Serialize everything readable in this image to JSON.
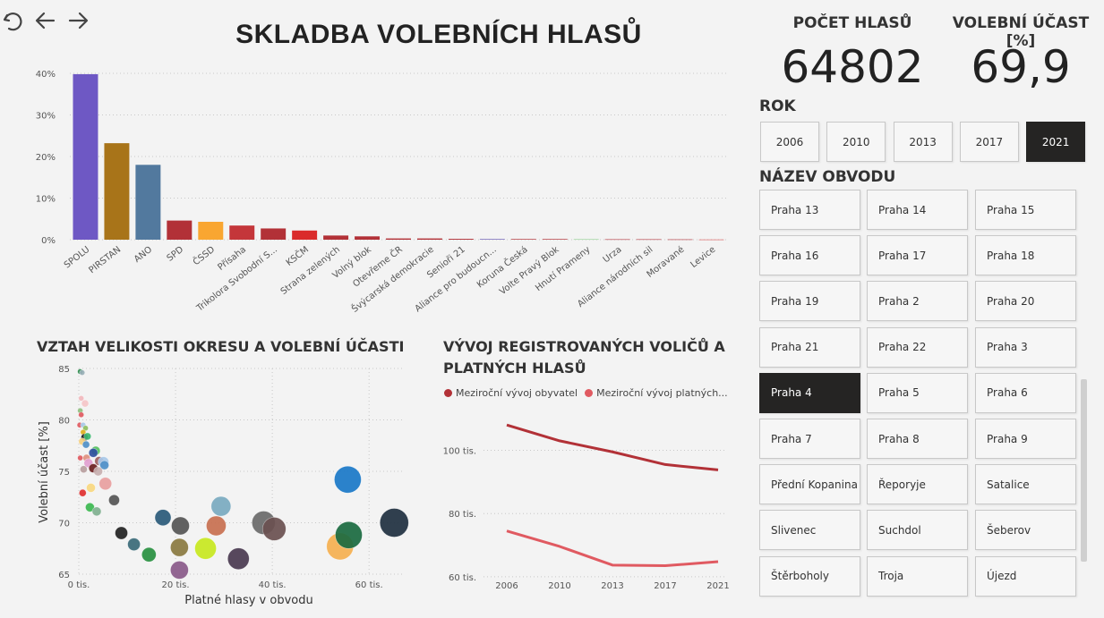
{
  "nav": {
    "undo_icon": "undo-icon",
    "back_icon": "arrow-left-icon",
    "forward_icon": "arrow-right-icon"
  },
  "title": "SKLADBA VOLEBNÍCH HLASŮ",
  "kpis": [
    {
      "label": "POČET HLASŮ",
      "value": "64802"
    },
    {
      "label": "VOLEBNÍ ÚČAST [%]",
      "value": "69,9"
    }
  ],
  "year_slicer": {
    "label": "ROK",
    "items": [
      "2006",
      "2010",
      "2013",
      "2017",
      "2021"
    ],
    "selected": "2021"
  },
  "district_slicer": {
    "label": "NÁZEV OBVODU",
    "items": [
      "Praha 13",
      "Praha 14",
      "Praha 15",
      "Praha 16",
      "Praha 17",
      "Praha 18",
      "Praha 19",
      "Praha 2",
      "Praha 20",
      "Praha 21",
      "Praha 22",
      "Praha 3",
      "Praha 4",
      "Praha 5",
      "Praha 6",
      "Praha 7",
      "Praha 8",
      "Praha 9",
      "Přední Kopanina",
      "Řeporyje",
      "Satalice",
      "Slivenec",
      "Suchdol",
      "Šeberov",
      "Štěrboholy",
      "Troja",
      "Újezd"
    ],
    "selected": "Praha 4"
  },
  "chart_data": [
    {
      "type": "bar",
      "title": "",
      "categories": [
        "SPOLU",
        "PIRSTAN",
        "ANO",
        "SPD",
        "ČSSD",
        "Přísaha",
        "Trikolora Svobodní S...",
        "KSČM",
        "Strana zelených",
        "Volný blok",
        "Otevřeme ČR",
        "Švýcarská demokracie",
        "Senioři 21",
        "Aliance pro budoucn...",
        "Koruna Česká",
        "Volte Pravý Blok",
        "Hnutí Prameny",
        "Urza",
        "Aliance národních sil",
        "Moravané",
        "Levice"
      ],
      "values": [
        39.8,
        23.2,
        18.0,
        4.6,
        4.3,
        3.4,
        2.7,
        2.2,
        1.0,
        0.8,
        0.3,
        0.3,
        0.2,
        0.2,
        0.15,
        0.15,
        0.12,
        0.1,
        0.1,
        0.08,
        0.05
      ],
      "colors": [
        "#6e58c4",
        "#a87419",
        "#52799e",
        "#b23137",
        "#f9a631",
        "#c4363a",
        "#b23137",
        "#da2b2b",
        "#b23137",
        "#b23137",
        "#b23137",
        "#b23137",
        "#b23137",
        "#8e82c4",
        "#b23137",
        "#b23137",
        "#8fcf8f",
        "#b23137",
        "#b23137",
        "#b23137",
        "#da5454"
      ],
      "yticks": [
        "0%",
        "10%",
        "20%",
        "30%",
        "40%"
      ],
      "ylim": [
        0,
        40
      ]
    },
    {
      "type": "scatter",
      "title": "VZTAH VELIKOSTI OKRESU A VOLEBNÍ ÚČASTI",
      "xlabel": "Platné hlasy v obvodu",
      "ylabel": "Volební účast [%]",
      "xlim": [
        0,
        67
      ],
      "ylim": [
        65,
        85
      ],
      "xticks": [
        {
          "v": 0,
          "label": "0 tis."
        },
        {
          "v": 20,
          "label": "20 tis."
        },
        {
          "v": 40,
          "label": "40 tis."
        },
        {
          "v": 60,
          "label": "60 tis."
        }
      ],
      "yticks": [
        {
          "v": 65,
          "label": "65"
        },
        {
          "v": 70,
          "label": "70"
        },
        {
          "v": 75,
          "label": "75"
        },
        {
          "v": 80,
          "label": "80"
        },
        {
          "v": 85,
          "label": "85"
        }
      ],
      "points": [
        {
          "x": 0.3,
          "y": 84.7,
          "r": 3,
          "c": "#2a8a4a"
        },
        {
          "x": 0.7,
          "y": 84.6,
          "r": 3,
          "c": "#9ab0b8"
        },
        {
          "x": 0.5,
          "y": 82.1,
          "r": 3,
          "c": "#f2b9bd"
        },
        {
          "x": 1.3,
          "y": 81.6,
          "r": 4,
          "c": "#f5c6c8"
        },
        {
          "x": 0.3,
          "y": 80.9,
          "r": 3,
          "c": "#8fbf7f"
        },
        {
          "x": 0.5,
          "y": 80.5,
          "r": 3,
          "c": "#e05a61"
        },
        {
          "x": 0.2,
          "y": 79.5,
          "r": 3,
          "c": "#e05a61"
        },
        {
          "x": 0.9,
          "y": 79.5,
          "r": 3,
          "c": "#a8c8e8"
        },
        {
          "x": 1.4,
          "y": 79.2,
          "r": 3,
          "c": "#8fbf5f"
        },
        {
          "x": 0.9,
          "y": 78.8,
          "r": 3,
          "c": "#e0b020"
        },
        {
          "x": 1.2,
          "y": 78.3,
          "r": 4,
          "c": "#1a1a1a"
        },
        {
          "x": 1.8,
          "y": 78.4,
          "r": 4,
          "c": "#3cb870"
        },
        {
          "x": 0.7,
          "y": 77.9,
          "r": 4,
          "c": "#f5d080"
        },
        {
          "x": 1.5,
          "y": 77.6,
          "r": 4,
          "c": "#5090c8"
        },
        {
          "x": 3.5,
          "y": 77.0,
          "r": 5,
          "c": "#55c060"
        },
        {
          "x": 3.0,
          "y": 76.8,
          "r": 5,
          "c": "#3050a0"
        },
        {
          "x": 0.3,
          "y": 76.3,
          "r": 3,
          "c": "#e05a61"
        },
        {
          "x": 1.6,
          "y": 76.3,
          "r": 4,
          "c": "#e09080"
        },
        {
          "x": 2.0,
          "y": 75.8,
          "r": 5,
          "c": "#e2a0d0"
        },
        {
          "x": 4.2,
          "y": 76.0,
          "r": 5,
          "c": "#a06060"
        },
        {
          "x": 5.1,
          "y": 75.9,
          "r": 6,
          "c": "#a8c8e8"
        },
        {
          "x": 5.3,
          "y": 75.6,
          "r": 5,
          "c": "#5090c8"
        },
        {
          "x": 3.0,
          "y": 75.3,
          "r": 5,
          "c": "#6a2020"
        },
        {
          "x": 4.0,
          "y": 75.0,
          "r": 5,
          "c": "#c8b0b0"
        },
        {
          "x": 1.0,
          "y": 75.2,
          "r": 4,
          "c": "#b8a0a0"
        },
        {
          "x": 5.5,
          "y": 73.8,
          "r": 7,
          "c": "#e8a0a0"
        },
        {
          "x": 2.5,
          "y": 73.4,
          "r": 5,
          "c": "#f8d880"
        },
        {
          "x": 0.8,
          "y": 72.9,
          "r": 4,
          "c": "#e03030"
        },
        {
          "x": 7.3,
          "y": 72.2,
          "r": 6,
          "c": "#555555"
        },
        {
          "x": 2.3,
          "y": 71.5,
          "r": 5,
          "c": "#3cb850"
        },
        {
          "x": 3.7,
          "y": 71.1,
          "r": 5,
          "c": "#80b090"
        },
        {
          "x": 8.8,
          "y": 69.0,
          "r": 7,
          "c": "#222222"
        },
        {
          "x": 11.4,
          "y": 67.9,
          "r": 7,
          "c": "#3a6a78"
        },
        {
          "x": 14.5,
          "y": 66.9,
          "r": 8,
          "c": "#289040"
        },
        {
          "x": 17.4,
          "y": 70.5,
          "r": 9,
          "c": "#2a5a7a"
        },
        {
          "x": 21.0,
          "y": 69.7,
          "r": 10,
          "c": "#555555"
        },
        {
          "x": 20.8,
          "y": 67.6,
          "r": 10,
          "c": "#8a7a40"
        },
        {
          "x": 20.8,
          "y": 65.4,
          "r": 10,
          "c": "#8a5a8a"
        },
        {
          "x": 26.2,
          "y": 67.5,
          "r": 12,
          "c": "#c8e820"
        },
        {
          "x": 28.4,
          "y": 69.7,
          "r": 11,
          "c": "#c87050"
        },
        {
          "x": 29.4,
          "y": 71.6,
          "r": 11,
          "c": "#7aaac0"
        },
        {
          "x": 33.0,
          "y": 66.5,
          "r": 12,
          "c": "#4a3a50"
        },
        {
          "x": 38.2,
          "y": 70.0,
          "r": 13,
          "c": "#6a6a6a"
        },
        {
          "x": 40.4,
          "y": 69.4,
          "r": 13,
          "c": "#6a5050"
        },
        {
          "x": 54.0,
          "y": 67.7,
          "r": 15,
          "c": "#f5b050"
        },
        {
          "x": 55.8,
          "y": 68.8,
          "r": 15,
          "c": "#1a6a40"
        },
        {
          "x": 55.6,
          "y": 74.2,
          "r": 15,
          "c": "#1a78c8"
        },
        {
          "x": 65.2,
          "y": 70.0,
          "r": 16,
          "c": "#203040"
        }
      ]
    },
    {
      "type": "line",
      "title": "VÝVOJ REGISTROVANÝCH VOLIČŮ A PLATNÝCH HLASŮ",
      "x": [
        "2006",
        "2010",
        "2013",
        "2017",
        "2021"
      ],
      "ylim": [
        58,
        114
      ],
      "yticks": [
        {
          "v": 60,
          "label": "60 tis."
        },
        {
          "v": 80,
          "label": "80 tis."
        },
        {
          "v": 100,
          "label": "100 tis."
        }
      ],
      "series": [
        {
          "name": "Meziroční vývoj obyvatel",
          "color": "#b23137",
          "values": [
            108,
            103,
            99.5,
            95.5,
            93.8
          ]
        },
        {
          "name": "Meziroční vývoj platných...",
          "color": "#e05a61",
          "values": [
            74.5,
            69.6,
            63.7,
            63.5,
            64.8
          ]
        }
      ]
    }
  ]
}
